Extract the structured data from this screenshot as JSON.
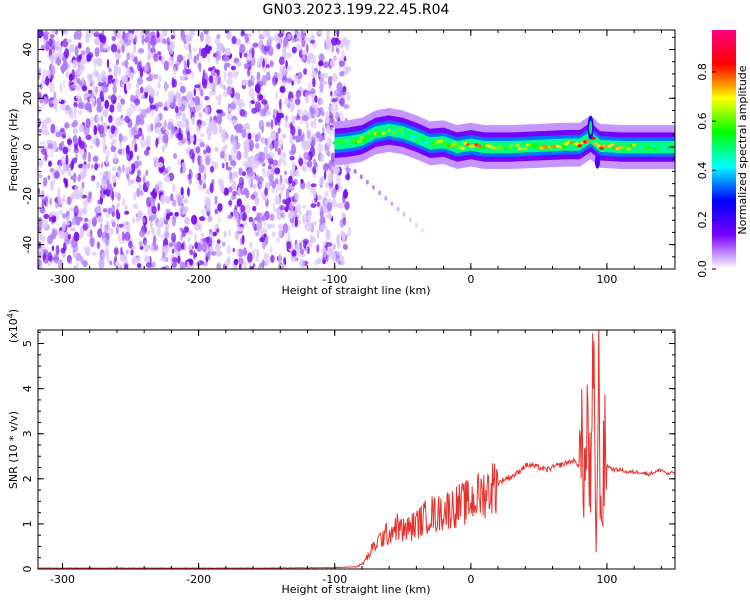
{
  "title": "GN03.2023.199.22.45.R04",
  "chart_data": [
    {
      "type": "heatmap",
      "xlabel": "Height of straight line (km)",
      "ylabel": "Frequency (Hz)",
      "xlim": [
        -318,
        150
      ],
      "ylim": [
        -50,
        48
      ],
      "xticks": [
        -300,
        -200,
        -100,
        0,
        100
      ],
      "yticks": [
        -40,
        -20,
        0,
        20,
        40
      ],
      "grid": false,
      "colorbar": {
        "label": "Normalized spectral amplitude",
        "ticks": [
          0.0,
          0.2,
          0.4,
          0.6,
          0.8
        ],
        "range": [
          0,
          0.97
        ],
        "colors": [
          "#ffffff",
          "#7a00ff",
          "#0000ff",
          "#00ffff",
          "#00ff00",
          "#ffff00",
          "#ff0000",
          "#ff0080"
        ]
      },
      "noise_region_x": [
        -318,
        -90
      ],
      "ridge": [
        {
          "x": -100,
          "f": 1.5,
          "a": 0.45
        },
        {
          "x": -90,
          "f": 2,
          "a": 0.55
        },
        {
          "x": -80,
          "f": 3,
          "a": 0.65
        },
        {
          "x": -70,
          "f": 6,
          "a": 0.6
        },
        {
          "x": -60,
          "f": 7,
          "a": 0.55
        },
        {
          "x": -50,
          "f": 6,
          "a": 0.55
        },
        {
          "x": -40,
          "f": 4,
          "a": 0.5
        },
        {
          "x": -30,
          "f": 1.5,
          "a": 0.55
        },
        {
          "x": -20,
          "f": 2,
          "a": 0.6
        },
        {
          "x": -10,
          "f": 0,
          "a": 0.7
        },
        {
          "x": 0,
          "f": 1,
          "a": 0.75
        },
        {
          "x": 10,
          "f": 0,
          "a": 0.65
        },
        {
          "x": 30,
          "f": 0,
          "a": 0.6
        },
        {
          "x": 50,
          "f": 0.5,
          "a": 0.65
        },
        {
          "x": 70,
          "f": 1,
          "a": 0.7
        },
        {
          "x": 80,
          "f": 1,
          "a": 0.75
        },
        {
          "x": 88,
          "f": 4,
          "a": 0.9
        },
        {
          "x": 95,
          "f": 0.5,
          "a": 0.75
        },
        {
          "x": 110,
          "f": 0,
          "a": 0.7
        },
        {
          "x": 130,
          "f": 0,
          "a": 0.55
        },
        {
          "x": 150,
          "f": 0,
          "a": 0.5
        }
      ]
    },
    {
      "type": "line",
      "xlabel": "Height of straight line (km)",
      "ylabel": "SNR (10 * v/v)",
      "y_multiplier": "(x10",
      "y_multiplier_exp": "4",
      "y_multiplier_close": ")",
      "xlim": [
        -318,
        150
      ],
      "ylim": [
        0,
        5.3
      ],
      "xticks": [
        -300,
        -200,
        -100,
        0,
        100
      ],
      "yticks": [
        0,
        1,
        2,
        3,
        4,
        5
      ],
      "color": "#e8312c",
      "series": [
        {
          "x": [
            -318,
            -250,
            -150,
            -100,
            -85,
            -80,
            -75,
            -70,
            -65,
            -60,
            -55,
            -50,
            -45,
            -40,
            -35,
            -30,
            -25,
            -20,
            -15,
            -10,
            -5,
            0,
            5,
            10,
            15,
            20,
            25,
            30,
            35,
            40,
            45,
            50,
            55,
            60,
            65,
            70,
            75,
            80,
            82,
            84,
            86,
            88,
            90,
            92,
            94,
            96,
            98,
            100,
            105,
            110,
            115,
            120,
            125,
            130,
            135,
            140,
            145,
            150
          ],
          "y": [
            0.02,
            0.02,
            0.02,
            0.03,
            0.05,
            0.1,
            0.3,
            0.55,
            0.7,
            0.8,
            0.95,
            0.85,
            0.9,
            1.0,
            1.1,
            1.25,
            1.2,
            1.3,
            1.35,
            1.4,
            1.45,
            1.5,
            1.6,
            1.7,
            1.8,
            1.9,
            2.0,
            2.05,
            2.15,
            2.3,
            2.3,
            2.25,
            2.2,
            2.25,
            2.3,
            2.35,
            2.4,
            2.3,
            2.6,
            2.0,
            3.3,
            1.5,
            4.1,
            0.6,
            3.8,
            1.0,
            2.5,
            2.3,
            2.2,
            2.2,
            2.15,
            2.15,
            2.15,
            2.1,
            2.15,
            2.2,
            2.1,
            2.15
          ]
        }
      ]
    }
  ]
}
